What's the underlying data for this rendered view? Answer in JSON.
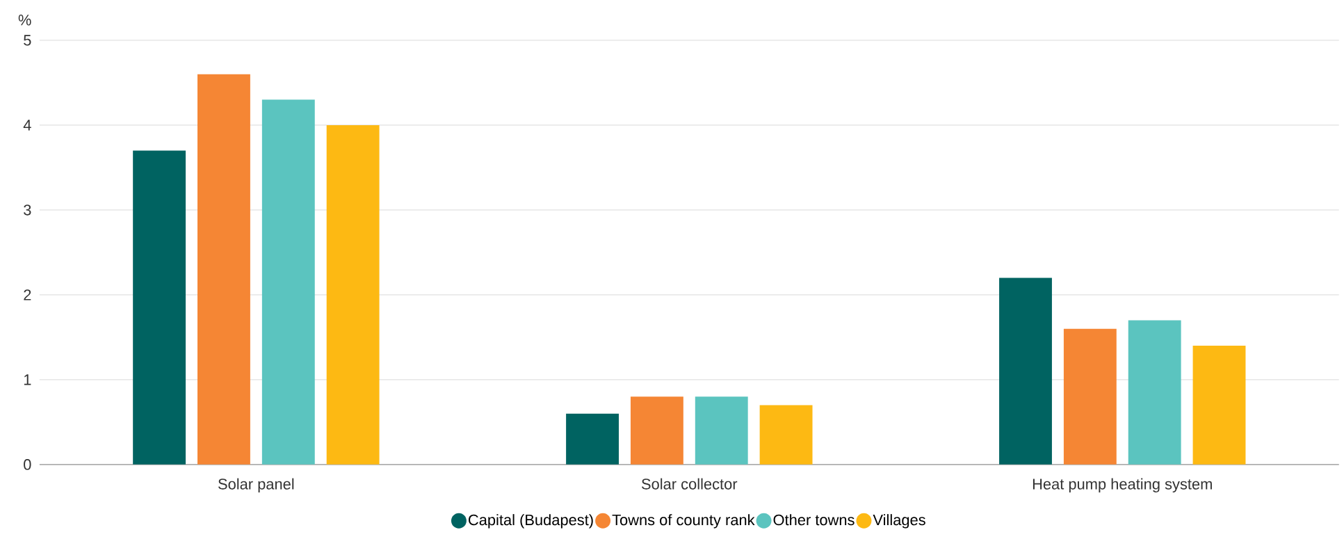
{
  "chart_data": {
    "type": "bar",
    "ylabel": "%",
    "categories": [
      "Solar panel",
      "Solar collector",
      "Heat pump heating system"
    ],
    "series": [
      {
        "name": "Capital (Budapest)",
        "color": "#006361",
        "values": [
          3.7,
          0.6,
          2.2
        ]
      },
      {
        "name": "Towns of county rank",
        "color": "#f58634",
        "values": [
          4.6,
          0.8,
          1.6
        ]
      },
      {
        "name": "Other towns",
        "color": "#5bc4bf",
        "values": [
          4.3,
          0.8,
          1.7
        ]
      },
      {
        "name": "Villages",
        "color": "#fdb913",
        "values": [
          4.0,
          0.7,
          1.4
        ]
      }
    ],
    "ylim": [
      0,
      5
    ],
    "yticks": [
      0,
      1,
      2,
      3,
      4,
      5
    ],
    "grid": "y",
    "legend": "bottom"
  }
}
